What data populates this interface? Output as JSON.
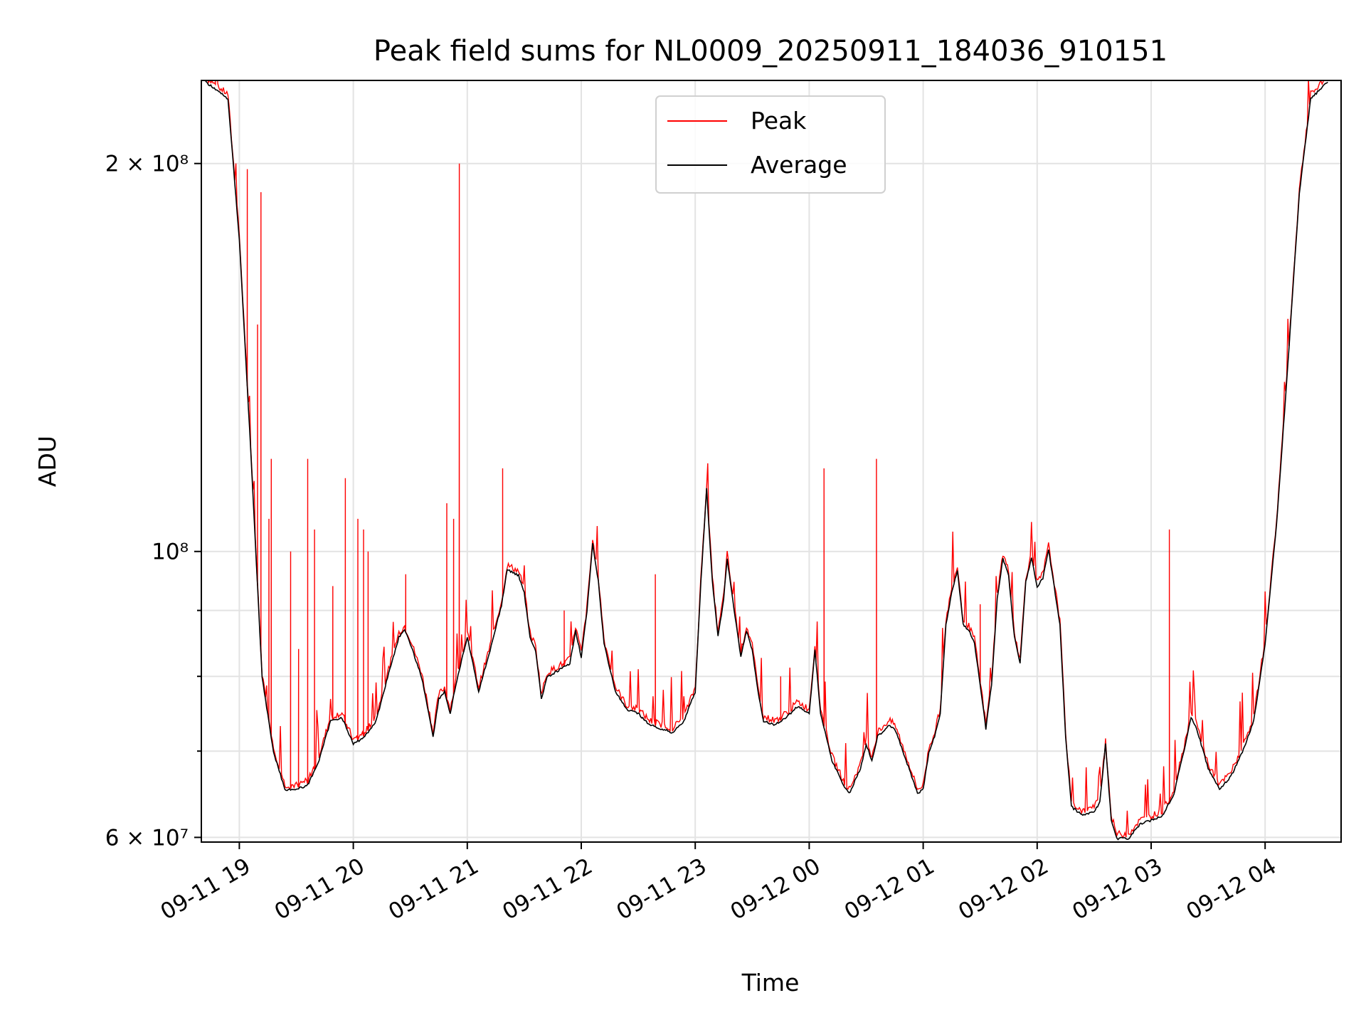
{
  "chart_data": {
    "type": "line",
    "title": "Peak field sums for NL0009_20250911_184036_910151",
    "xlabel": "Time",
    "ylabel": "ADU",
    "x_unit": "hours since 2025-09-11 19:00",
    "xlim": [
      "2025-09-11 18:40",
      "2025-09-12 04:40"
    ],
    "ylim": [
      59500000,
      232000000
    ],
    "yscale": "log",
    "x_ticks": [
      {
        "t": 0,
        "label": "09-11 19"
      },
      {
        "t": 1,
        "label": "09-11 20"
      },
      {
        "t": 2,
        "label": "09-11 21"
      },
      {
        "t": 3,
        "label": "09-11 22"
      },
      {
        "t": 4,
        "label": "09-11 23"
      },
      {
        "t": 5,
        "label": "09-12 00"
      },
      {
        "t": 6,
        "label": "09-12 01"
      },
      {
        "t": 7,
        "label": "09-12 02"
      },
      {
        "t": 8,
        "label": "09-12 03"
      },
      {
        "t": 9,
        "label": "09-12 04"
      }
    ],
    "y_ticks": [
      {
        "v": 60000000,
        "label": "6 × 10⁷"
      },
      {
        "v": 100000000,
        "label": "10⁸"
      },
      {
        "v": 200000000,
        "label": "2 × 10⁸"
      }
    ],
    "y_minor_ticks": [
      70000000,
      80000000,
      90000000
    ],
    "grid": true,
    "legend": {
      "position": "top-center",
      "entries": [
        "Peak",
        "Average"
      ]
    },
    "series": [
      {
        "name": "Average",
        "color": "#000000",
        "points": [
          [
            -0.3,
            232000000
          ],
          [
            -0.1,
            225000000
          ],
          [
            0,
            175000000
          ],
          [
            0.1,
            120000000
          ],
          [
            0.15,
            98000000
          ],
          [
            0.2,
            80000000
          ],
          [
            0.3,
            70000000
          ],
          [
            0.4,
            65500000
          ],
          [
            0.5,
            65500000
          ],
          [
            0.6,
            66000000
          ],
          [
            0.7,
            69000000
          ],
          [
            0.8,
            74000000
          ],
          [
            0.9,
            74500000
          ],
          [
            1.0,
            71000000
          ],
          [
            1.1,
            72000000
          ],
          [
            1.2,
            74000000
          ],
          [
            1.3,
            80000000
          ],
          [
            1.4,
            86000000
          ],
          [
            1.45,
            87000000
          ],
          [
            1.5,
            85000000
          ],
          [
            1.6,
            80000000
          ],
          [
            1.65,
            76000000
          ],
          [
            1.7,
            72000000
          ],
          [
            1.75,
            77000000
          ],
          [
            1.8,
            78000000
          ],
          [
            1.85,
            75000000
          ],
          [
            1.9,
            79000000
          ],
          [
            2.0,
            86000000
          ],
          [
            2.1,
            78000000
          ],
          [
            2.2,
            84000000
          ],
          [
            2.3,
            91000000
          ],
          [
            2.35,
            97000000
          ],
          [
            2.45,
            96000000
          ],
          [
            2.5,
            93000000
          ],
          [
            2.55,
            86000000
          ],
          [
            2.6,
            84000000
          ],
          [
            2.65,
            77000000
          ],
          [
            2.7,
            80000000
          ],
          [
            2.8,
            81000000
          ],
          [
            2.9,
            82000000
          ],
          [
            2.95,
            87000000
          ],
          [
            3.0,
            83000000
          ],
          [
            3.05,
            90000000
          ],
          [
            3.1,
            101500000
          ],
          [
            3.15,
            95000000
          ],
          [
            3.2,
            85000000
          ],
          [
            3.3,
            78000000
          ],
          [
            3.4,
            75500000
          ],
          [
            3.5,
            75000000
          ],
          [
            3.6,
            73500000
          ],
          [
            3.7,
            73000000
          ],
          [
            3.8,
            72500000
          ],
          [
            3.9,
            74000000
          ],
          [
            4.0,
            78000000
          ],
          [
            4.05,
            95000000
          ],
          [
            4.1,
            112000000
          ],
          [
            4.15,
            95000000
          ],
          [
            4.2,
            86000000
          ],
          [
            4.25,
            92000000
          ],
          [
            4.28,
            99000000
          ],
          [
            4.32,
            93000000
          ],
          [
            4.4,
            83000000
          ],
          [
            4.45,
            87000000
          ],
          [
            4.5,
            84000000
          ],
          [
            4.55,
            78000000
          ],
          [
            4.6,
            74000000
          ],
          [
            4.7,
            73500000
          ],
          [
            4.8,
            74500000
          ],
          [
            4.9,
            76000000
          ],
          [
            5.0,
            75000000
          ],
          [
            5.05,
            84000000
          ],
          [
            5.1,
            75000000
          ],
          [
            5.2,
            69000000
          ],
          [
            5.3,
            66000000
          ],
          [
            5.35,
            65000000
          ],
          [
            5.45,
            68000000
          ],
          [
            5.5,
            71000000
          ],
          [
            5.55,
            69000000
          ],
          [
            5.6,
            72000000
          ],
          [
            5.7,
            73500000
          ],
          [
            5.75,
            73000000
          ],
          [
            5.8,
            71000000
          ],
          [
            5.9,
            67000000
          ],
          [
            5.95,
            65000000
          ],
          [
            6.0,
            65500000
          ],
          [
            6.05,
            70000000
          ],
          [
            6.1,
            72000000
          ],
          [
            6.15,
            75000000
          ],
          [
            6.2,
            88000000
          ],
          [
            6.25,
            93000000
          ],
          [
            6.3,
            97000000
          ],
          [
            6.35,
            88000000
          ],
          [
            6.4,
            87000000
          ],
          [
            6.45,
            85000000
          ],
          [
            6.5,
            79000000
          ],
          [
            6.55,
            73000000
          ],
          [
            6.6,
            79000000
          ],
          [
            6.65,
            92000000
          ],
          [
            6.7,
            99000000
          ],
          [
            6.75,
            96000000
          ],
          [
            6.8,
            86000000
          ],
          [
            6.85,
            82000000
          ],
          [
            6.9,
            95000000
          ],
          [
            6.95,
            99000000
          ],
          [
            7.0,
            94000000
          ],
          [
            7.05,
            95500000
          ],
          [
            7.1,
            100500000
          ],
          [
            7.15,
            94000000
          ],
          [
            7.2,
            88000000
          ],
          [
            7.25,
            72000000
          ],
          [
            7.3,
            63500000
          ],
          [
            7.4,
            62500000
          ],
          [
            7.5,
            63000000
          ],
          [
            7.55,
            64000000
          ],
          [
            7.6,
            71000000
          ],
          [
            7.65,
            62000000
          ],
          [
            7.7,
            60000000
          ],
          [
            7.8,
            60000000
          ],
          [
            7.9,
            61500000
          ],
          [
            8.0,
            62000000
          ],
          [
            8.1,
            62500000
          ],
          [
            8.2,
            65000000
          ],
          [
            8.3,
            71000000
          ],
          [
            8.35,
            74500000
          ],
          [
            8.4,
            73000000
          ],
          [
            8.5,
            68000000
          ],
          [
            8.6,
            65500000
          ],
          [
            8.7,
            67000000
          ],
          [
            8.8,
            70000000
          ],
          [
            8.9,
            74000000
          ],
          [
            9.0,
            85000000
          ],
          [
            9.1,
            105000000
          ],
          [
            9.2,
            140000000
          ],
          [
            9.3,
            190000000
          ],
          [
            9.4,
            225000000
          ],
          [
            9.55,
            232000000
          ]
        ]
      },
      {
        "name": "Peak",
        "color": "#ff0000",
        "spikes": [
          [
            0.07,
            198000000
          ],
          [
            0.19,
            190000000
          ],
          [
            0.16,
            150000000
          ],
          [
            0.28,
            118000000
          ],
          [
            0.26,
            106000000
          ],
          [
            0.6,
            118000000
          ],
          [
            0.66,
            104000000
          ],
          [
            0.82,
            94000000
          ],
          [
            0.93,
            114000000
          ],
          [
            1.04,
            106000000
          ],
          [
            1.09,
            104000000
          ],
          [
            1.13,
            100000000
          ],
          [
            1.46,
            96000000
          ],
          [
            1.82,
            109000000
          ],
          [
            1.88,
            106000000
          ],
          [
            1.93,
            200000000
          ],
          [
            2.31,
            116000000
          ],
          [
            3.65,
            96000000
          ],
          [
            5.13,
            116000000
          ],
          [
            5.59,
            118000000
          ],
          [
            8.16,
            104000000
          ],
          [
            0.45,
            100000000
          ],
          [
            0.52,
            84000000
          ],
          [
            2.85,
            90000000
          ],
          [
            4.75,
            80000000
          ],
          [
            6.5,
            91000000
          ],
          [
            7.59,
            69000000
          ],
          [
            9.21,
            146000000
          ]
        ]
      }
    ]
  }
}
